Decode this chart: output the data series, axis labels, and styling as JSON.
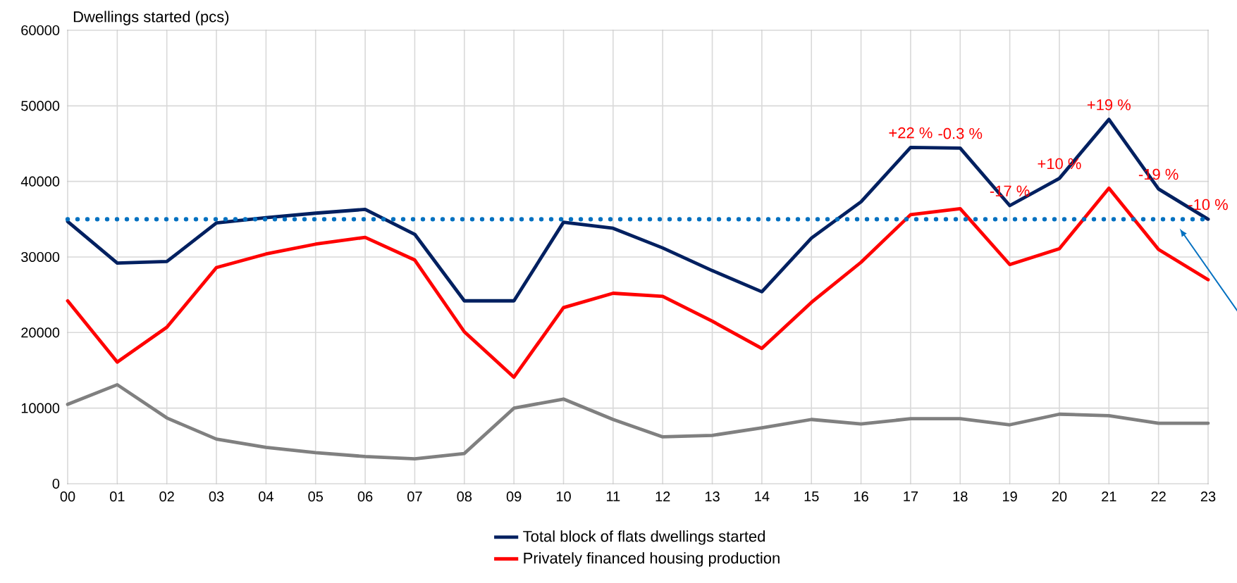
{
  "chart_data": {
    "type": "line",
    "ylabel": "Dwellings started (pcs)",
    "categories": [
      "00",
      "01",
      "02",
      "03",
      "04",
      "05",
      "06",
      "07",
      "08",
      "09",
      "10",
      "11",
      "12",
      "13",
      "14",
      "15",
      "16",
      "17",
      "18",
      "19",
      "20",
      "21",
      "22",
      "23"
    ],
    "series": [
      {
        "name": "Total block of flats dwellings started",
        "color": "#002060",
        "values": [
          34700,
          29200,
          29400,
          34500,
          35200,
          35800,
          36300,
          33000,
          24200,
          24200,
          34600,
          33800,
          31200,
          28200,
          25400,
          32500,
          37300,
          44500,
          44400,
          36800,
          40400,
          48200,
          39000,
          35000
        ]
      },
      {
        "name": "Privately financed housing production",
        "color": "#ff0000",
        "values": [
          24200,
          16100,
          20700,
          28600,
          30400,
          31700,
          32600,
          29600,
          20100,
          14100,
          23300,
          25200,
          24800,
          21500,
          17900,
          24000,
          29300,
          35600,
          36400,
          29000,
          31100,
          39100,
          31000,
          27000
        ]
      },
      {
        "color": "#808080",
        "values": [
          10500,
          13100,
          8700,
          5900,
          4800,
          4100,
          3600,
          3300,
          4000,
          10000,
          11200,
          8500,
          6200,
          6400,
          7400,
          8500,
          7900,
          8600,
          8600,
          7800,
          9200,
          9000,
          8000,
          8000
        ]
      }
    ],
    "ylim": [
      0,
      60000
    ],
    "yticks": [
      0,
      10000,
      20000,
      30000,
      40000,
      50000,
      60000
    ],
    "ref_lines": [
      {
        "axis": "y",
        "value": 35000,
        "color": "#0070c0",
        "line_style": "dotted"
      }
    ],
    "annotations": [
      {
        "text": "+22 %",
        "x": "17",
        "y": 44500
      },
      {
        "text": "-0.3 %",
        "x": "18",
        "y": 44400
      },
      {
        "text": "-17 %",
        "x": "19",
        "y": 36800
      },
      {
        "text": "+10 %",
        "x": "20",
        "y": 40400
      },
      {
        "text": "+19 %",
        "x": "21",
        "y": 48200
      },
      {
        "text": "-19 %",
        "x": "22",
        "y": 39000
      },
      {
        "text": "-10 %",
        "x": "23",
        "y": 35000
      }
    ],
    "grid": true,
    "legend": "bottom",
    "marker": "none",
    "line_style": "solid"
  }
}
